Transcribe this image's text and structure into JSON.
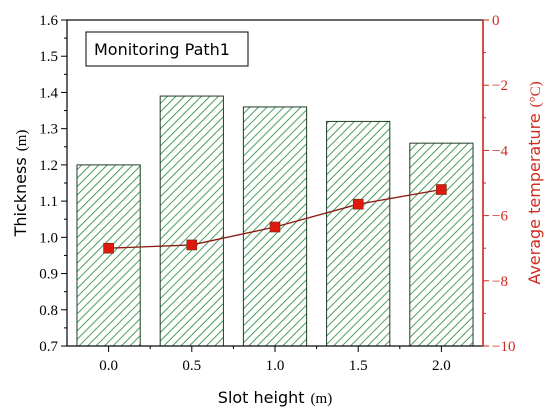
{
  "chart_data": {
    "type": "bar",
    "legend_position": "top-left",
    "legend_label": "Monitoring Path1",
    "categories": [
      "0.0",
      "0.5",
      "1.0",
      "1.5",
      "2.0"
    ],
    "series": [
      {
        "axis": "left",
        "type": "bar",
        "values": [
          1.2,
          1.39,
          1.36,
          1.32,
          1.26
        ]
      },
      {
        "axis": "right",
        "type": "line",
        "values": [
          -7.0,
          -6.9,
          -6.35,
          -5.65,
          -5.2
        ]
      }
    ],
    "xlabel": "Slot height",
    "xlabel_unit": "(m)",
    "ylabel": "Thickness",
    "ylabel_unit": "(m)",
    "ylim": [
      0.7,
      1.6
    ],
    "yticks": [
      "0.7",
      "0.8",
      "0.9",
      "1.0",
      "1.1",
      "1.2",
      "1.3",
      "1.4",
      "1.5",
      "1.6"
    ],
    "y2label": "Average temperature",
    "y2label_unit": "(°C)",
    "y2lim": [
      -10,
      0
    ],
    "y2ticks": [
      "−10",
      "−8",
      "−6",
      "−4",
      "−2",
      "0"
    ],
    "colors": {
      "bar_hatch": "#4a9e5c",
      "bar_border": "#1f3d24",
      "line": "#8b1a10",
      "marker": "#e0190f",
      "right_axis": "#d12a1f"
    }
  }
}
